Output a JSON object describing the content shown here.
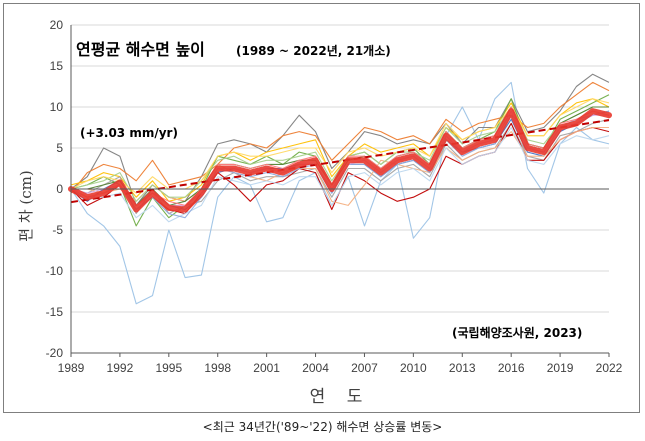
{
  "chart_data": {
    "type": "line",
    "title": "연평균 해수면 높이",
    "subtitle": "(1989 ~ 2022년, 21개소)",
    "rate_annotation": "(+3.03 mm/yr)",
    "source_annotation": "(국립해양조사원, 2023)",
    "ylabel": "편 차 (cm)",
    "xlabel": "연 도",
    "caption": "<최근 34년간('89~'22) 해수면 상승률 변동>",
    "ylim": [
      -20,
      20
    ],
    "xlim": [
      1989,
      2022
    ],
    "yticks": [
      "-20",
      "-15",
      "-10",
      "-5",
      "0",
      "5",
      "10",
      "15",
      "20"
    ],
    "xticks": [
      "1989",
      "1992",
      "1995",
      "1998",
      "2001",
      "2004",
      "2007",
      "2010",
      "2013",
      "2016",
      "2019",
      "2022"
    ],
    "grid": "horizontal",
    "x": [
      1989,
      1990,
      1991,
      1992,
      1993,
      1994,
      1995,
      1996,
      1997,
      1998,
      1999,
      2000,
      2001,
      2002,
      2003,
      2004,
      2005,
      2006,
      2007,
      2008,
      2009,
      2010,
      2011,
      2012,
      2013,
      2014,
      2015,
      2016,
      2017,
      2018,
      2019,
      2020,
      2021,
      2022
    ],
    "mean_series": {
      "color": "#e8382e",
      "values": [
        0.0,
        -1.0,
        -0.5,
        0.8,
        -2.5,
        -0.5,
        -2.3,
        -2.5,
        -0.5,
        2.5,
        2.5,
        2.0,
        2.5,
        2.0,
        3.0,
        3.5,
        0.0,
        3.5,
        3.5,
        2.0,
        3.5,
        4.0,
        2.5,
        6.5,
        4.5,
        5.5,
        6.0,
        9.5,
        5.0,
        4.5,
        7.5,
        8.0,
        9.5,
        9.0
      ]
    },
    "trend_line": {
      "color": "#c00000",
      "slope_cm_per_year": 0.303,
      "start": [
        1989,
        -1.6
      ],
      "end": [
        2022,
        8.4
      ]
    },
    "station_series": [
      {
        "color": "#9dc3e6",
        "values": [
          0.0,
          -3.0,
          -4.5,
          -7.0,
          -14.0,
          -13.0,
          -5.0,
          -10.8,
          -10.5,
          -1.0,
          1.5,
          0.5,
          -4.0,
          -3.5,
          1.0,
          2.0,
          -2.0,
          1.5,
          -4.5,
          1.0,
          3.0,
          -6.0,
          -3.5,
          6.5,
          10.0,
          6.0,
          11.0,
          13.0,
          2.5,
          -0.5,
          5.5,
          7.5,
          6.0,
          5.5
        ]
      },
      {
        "color": "#7f7f7f",
        "values": [
          0.0,
          1.5,
          5.0,
          4.0,
          -2.0,
          0.5,
          -1.0,
          -1.5,
          1.5,
          5.5,
          6.0,
          5.5,
          4.5,
          6.5,
          9.0,
          7.0,
          2.5,
          4.5,
          7.0,
          6.5,
          5.5,
          6.0,
          5.5,
          8.0,
          5.5,
          7.5,
          7.5,
          11.0,
          7.0,
          7.5,
          9.5,
          12.5,
          14.0,
          13.0
        ]
      },
      {
        "color": "#ed7d31",
        "values": [
          -0.5,
          2.0,
          3.0,
          2.5,
          1.0,
          3.5,
          0.5,
          1.0,
          1.5,
          3.0,
          5.0,
          5.5,
          5.0,
          6.5,
          7.0,
          6.5,
          3.5,
          5.5,
          7.5,
          7.0,
          6.0,
          6.5,
          5.5,
          8.5,
          7.0,
          8.0,
          8.5,
          9.0,
          7.5,
          8.0,
          10.0,
          11.5,
          13.0,
          12.0
        ]
      },
      {
        "color": "#ffc000",
        "values": [
          0.5,
          1.0,
          2.0,
          1.5,
          -1.0,
          1.0,
          -1.5,
          -1.0,
          0.5,
          4.0,
          4.5,
          3.5,
          4.5,
          5.0,
          5.5,
          6.0,
          1.5,
          4.0,
          5.5,
          4.5,
          5.0,
          5.5,
          4.0,
          7.5,
          6.0,
          7.0,
          7.5,
          10.5,
          6.5,
          6.5,
          9.0,
          10.5,
          11.0,
          10.0
        ]
      },
      {
        "color": "#70ad47",
        "values": [
          0.0,
          0.5,
          1.5,
          0.5,
          -4.5,
          -1.0,
          -3.5,
          -2.0,
          0.0,
          4.0,
          3.5,
          3.0,
          4.0,
          3.0,
          4.5,
          4.0,
          0.5,
          4.0,
          4.5,
          3.0,
          4.5,
          5.0,
          3.0,
          7.0,
          5.0,
          6.0,
          7.0,
          11.0,
          5.5,
          5.0,
          8.5,
          9.5,
          10.5,
          11.5
        ]
      },
      {
        "color": "#4472c4",
        "values": [
          0.0,
          -1.5,
          0.0,
          1.0,
          -2.0,
          -0.5,
          -2.0,
          -2.5,
          -1.0,
          2.0,
          2.5,
          2.0,
          2.5,
          2.5,
          3.0,
          3.0,
          -0.5,
          3.0,
          3.0,
          1.5,
          3.0,
          3.5,
          2.0,
          6.0,
          4.5,
          5.0,
          5.5,
          8.5,
          4.5,
          4.0,
          7.0,
          8.0,
          9.0,
          9.5
        ]
      },
      {
        "color": "#a5a5a5",
        "values": [
          0.0,
          -0.5,
          0.5,
          1.5,
          -3.0,
          0.0,
          -3.0,
          -2.0,
          -1.5,
          1.0,
          2.0,
          1.0,
          1.5,
          1.5,
          2.0,
          2.5,
          -1.0,
          2.5,
          2.5,
          1.0,
          2.5,
          3.0,
          1.5,
          5.5,
          3.5,
          4.5,
          5.0,
          8.0,
          4.0,
          3.5,
          6.5,
          7.0,
          8.0,
          8.5
        ]
      },
      {
        "color": "#c00000",
        "values": [
          0.0,
          -2.0,
          -1.0,
          0.5,
          -2.5,
          -1.0,
          -2.5,
          -3.0,
          -0.5,
          2.0,
          0.5,
          -1.5,
          0.5,
          1.0,
          2.5,
          2.0,
          -2.5,
          2.0,
          1.0,
          -0.5,
          -1.5,
          -1.0,
          0.0,
          4.0,
          3.0,
          4.0,
          4.5,
          8.0,
          3.5,
          3.5,
          6.0,
          7.0,
          7.5,
          7.0
        ]
      },
      {
        "color": "#f4b183",
        "values": [
          0.0,
          0.0,
          -0.5,
          0.0,
          -1.5,
          0.5,
          -1.0,
          -1.5,
          0.0,
          3.0,
          2.0,
          1.5,
          1.0,
          2.0,
          2.5,
          2.5,
          -1.5,
          -2.0,
          0.5,
          3.5,
          3.0,
          2.5,
          2.0,
          5.0,
          3.5,
          4.5,
          5.0,
          7.0,
          4.0,
          4.0,
          6.0,
          7.0,
          7.5,
          7.5
        ]
      },
      {
        "color": "#bdd7ee",
        "values": [
          0.0,
          -1.0,
          -1.0,
          -0.5,
          -3.5,
          -2.0,
          -4.0,
          -3.0,
          -2.0,
          1.5,
          1.0,
          0.5,
          1.0,
          0.5,
          1.5,
          1.5,
          -2.0,
          1.5,
          2.0,
          0.5,
          2.0,
          2.5,
          1.0,
          5.0,
          3.0,
          4.0,
          4.5,
          7.5,
          3.5,
          3.0,
          5.5,
          6.5,
          6.0,
          6.5
        ]
      },
      {
        "color": "#a9d18e",
        "values": [
          0.0,
          0.5,
          1.0,
          2.0,
          -1.5,
          0.5,
          -1.0,
          -1.0,
          1.0,
          3.5,
          4.0,
          3.0,
          3.5,
          3.5,
          4.0,
          4.5,
          1.0,
          4.0,
          4.5,
          3.0,
          4.5,
          4.5,
          3.5,
          7.5,
          5.5,
          6.5,
          7.0,
          10.0,
          6.0,
          5.5,
          8.0,
          9.0,
          10.0,
          10.0
        ]
      },
      {
        "color": "#8faadc",
        "values": [
          0.0,
          -1.0,
          -0.5,
          0.5,
          -2.5,
          -1.0,
          -3.0,
          -3.5,
          -1.0,
          2.5,
          2.0,
          1.5,
          2.0,
          1.5,
          2.5,
          3.0,
          -0.5,
          3.0,
          3.0,
          1.5,
          3.0,
          3.5,
          2.0,
          6.0,
          4.0,
          5.0,
          5.5,
          9.0,
          5.0,
          4.5,
          7.5,
          8.5,
          9.0,
          9.5
        ]
      },
      {
        "color": "#ffd966",
        "values": [
          0.0,
          1.0,
          1.5,
          1.0,
          -0.5,
          1.5,
          0.0,
          0.0,
          1.0,
          4.0,
          4.5,
          4.0,
          4.0,
          4.5,
          5.0,
          5.0,
          2.0,
          4.5,
          5.0,
          4.0,
          4.5,
          5.0,
          4.0,
          8.0,
          6.0,
          7.0,
          7.5,
          10.0,
          6.5,
          6.5,
          9.0,
          10.0,
          11.0,
          10.5
        ]
      },
      {
        "color": "#548235",
        "values": [
          0.0,
          0.0,
          0.5,
          1.0,
          -2.0,
          0.0,
          -2.0,
          -1.5,
          0.0,
          3.0,
          3.0,
          2.5,
          3.0,
          3.0,
          3.5,
          3.5,
          0.5,
          3.5,
          4.0,
          2.5,
          4.0,
          4.5,
          3.0,
          7.0,
          5.0,
          6.0,
          6.5,
          10.0,
          5.5,
          5.0,
          8.0,
          9.0,
          10.0,
          10.0
        ]
      },
      {
        "color": "#d6a5e0",
        "values": [
          0.0,
          -0.5,
          0.0,
          0.5,
          -2.0,
          -0.5,
          -2.0,
          -2.0,
          -0.5,
          2.5,
          2.5,
          2.0,
          2.5,
          2.0,
          3.0,
          3.0,
          0.0,
          3.0,
          3.5,
          2.0,
          3.5,
          4.0,
          2.5,
          6.5,
          4.5,
          5.5,
          6.0,
          9.5,
          5.0,
          4.5,
          7.5,
          8.0,
          9.0,
          9.0
        ]
      },
      {
        "color": "#ff7c80",
        "values": [
          0.0,
          -1.0,
          -0.5,
          0.5,
          -2.0,
          -0.5,
          -1.5,
          -2.0,
          0.0,
          3.0,
          3.0,
          2.5,
          3.0,
          2.5,
          3.5,
          4.0,
          0.5,
          4.0,
          4.0,
          2.5,
          4.0,
          4.5,
          3.0,
          7.0,
          5.0,
          6.0,
          6.5,
          10.0,
          5.5,
          5.0,
          8.0,
          8.5,
          9.5,
          9.0
        ]
      }
    ]
  }
}
